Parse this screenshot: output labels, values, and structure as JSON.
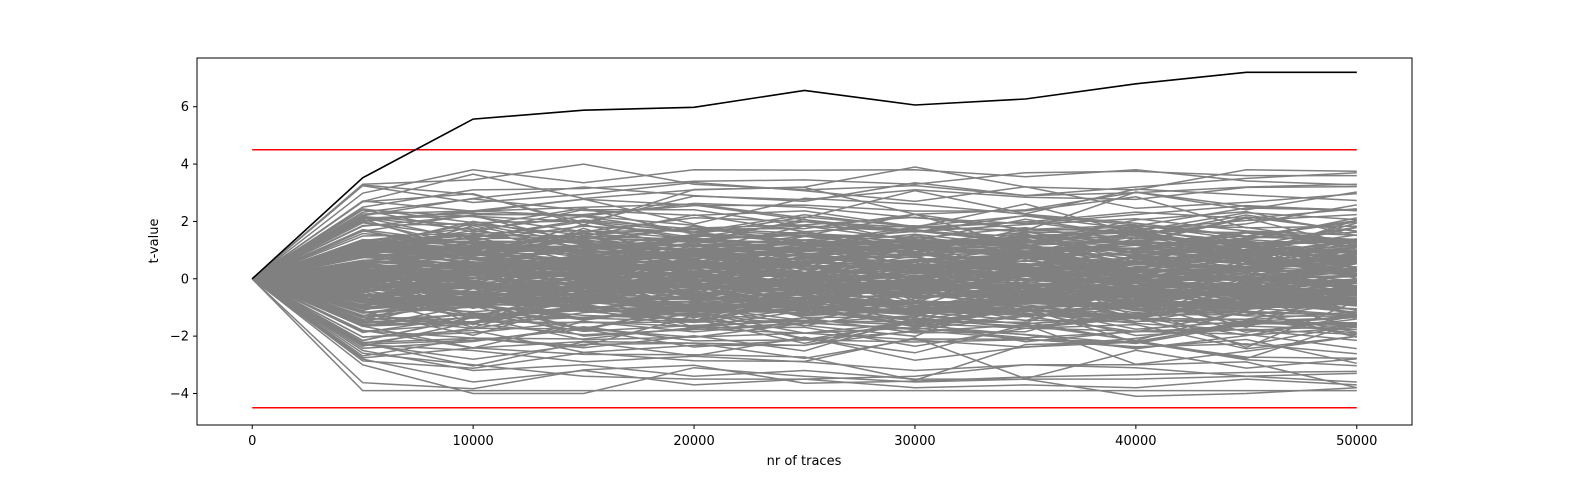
{
  "chart_data": {
    "type": "line",
    "title": "",
    "xlabel": "nr of traces",
    "ylabel": "t-value",
    "xlim": [
      -2500,
      52500
    ],
    "ylim": [
      -5.1,
      7.7
    ],
    "xticks": [
      0,
      10000,
      20000,
      30000,
      40000,
      50000
    ],
    "yticks": [
      -4,
      -2,
      0,
      2,
      4,
      6
    ],
    "x": [
      0,
      5000,
      10000,
      15000,
      20000,
      25000,
      30000,
      35000,
      40000,
      45000,
      50000
    ],
    "grid": false,
    "legend": "none",
    "threshold_lines": [
      {
        "y": 4.5,
        "color": "#ff0000"
      },
      {
        "y": -4.5,
        "color": "#ff0000"
      }
    ],
    "highlight_series": {
      "color": "#000000",
      "values": [
        0,
        3.52,
        5.57,
        5.88,
        5.98,
        6.57,
        6.06,
        6.27,
        6.8,
        7.2,
        7.2
      ]
    },
    "background_series": {
      "color": "#808080",
      "count": 255,
      "series": [
        [
          0,
          3.3,
          3.45,
          4.0,
          3.3,
          3.1,
          3.25,
          2.9,
          3.2,
          3.5,
          3.7
        ],
        [
          0,
          2.7,
          3.65,
          2.8,
          3.1,
          3.2,
          3.9,
          3.2,
          3.1,
          3.8,
          3.75
        ],
        [
          0,
          2.5,
          3.1,
          3.15,
          3.4,
          3.45,
          3.3,
          3.7,
          3.75,
          3.6,
          3.6
        ],
        [
          0,
          2.2,
          2.8,
          3.2,
          2.9,
          2.7,
          3.35,
          2.9,
          3.0,
          3.2,
          3.3
        ],
        [
          0,
          -3.0,
          -4.0,
          -4.0,
          -3.1,
          -3.4,
          -3.6,
          -3.5,
          -4.1,
          -4.0,
          -3.8
        ],
        [
          0,
          -2.8,
          -3.6,
          -3.2,
          -3.7,
          -3.5,
          -3.8,
          -3.7,
          -3.8,
          -3.5,
          -3.7
        ],
        [
          0,
          -2.5,
          -3.2,
          -3.0,
          -3.4,
          -3.2,
          -3.5,
          -3.5,
          -3.5,
          -3.4,
          -3.6
        ],
        [
          0,
          -2.6,
          -3.0,
          -3.4,
          -3.5,
          -3.5,
          -3.4,
          -3.0,
          -3.0,
          -2.9,
          -3.8
        ],
        [
          0,
          -2.3,
          -2.5,
          -2.9,
          -2.7,
          -2.9,
          -3.2,
          -3.0,
          -3.1,
          -3.4,
          -3.3
        ]
      ]
    }
  }
}
